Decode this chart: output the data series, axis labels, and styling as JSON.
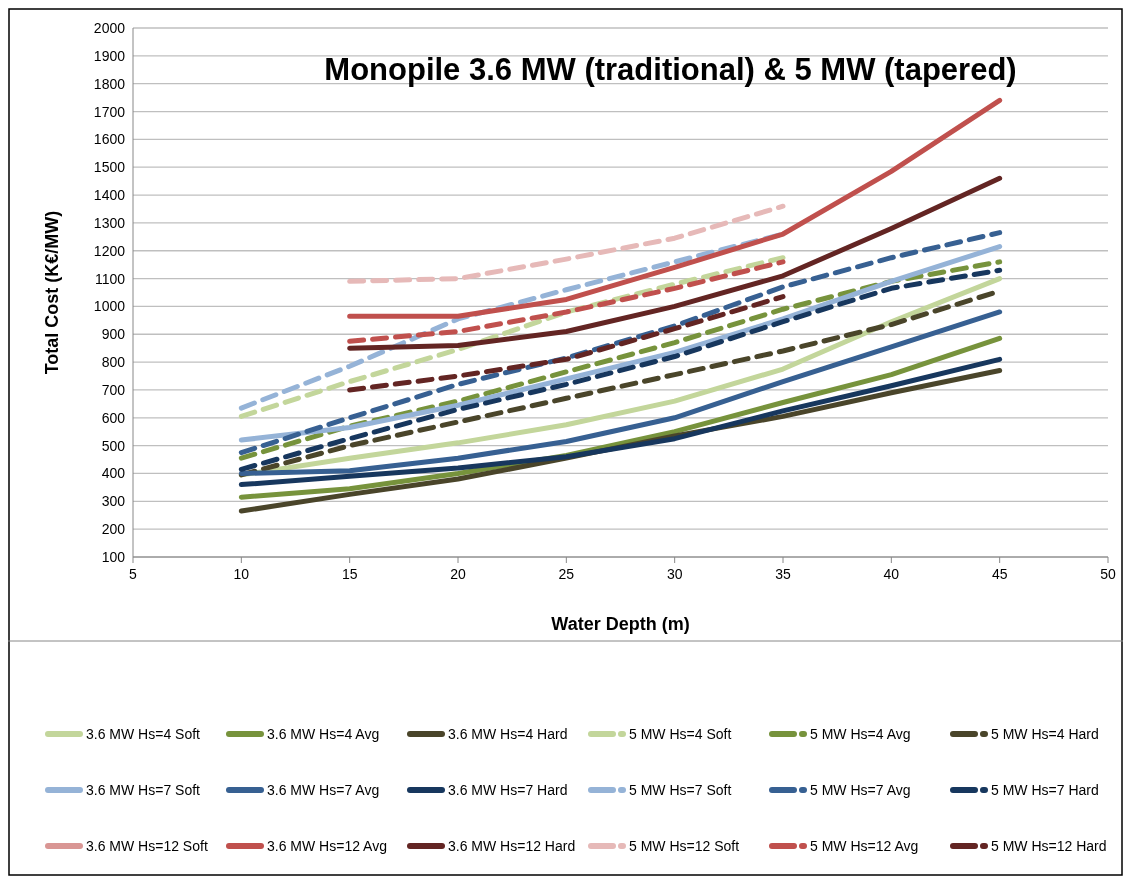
{
  "chart_data": {
    "type": "line",
    "title": "Monopile 3.6 MW (traditional) & 5 MW (tapered)",
    "xlabel": "Water Depth (m)",
    "ylabel": "Total Cost (K€/MW)",
    "xlim": [
      5,
      50
    ],
    "xticks": [
      5,
      10,
      15,
      20,
      25,
      30,
      35,
      40,
      45,
      50
    ],
    "ylim": [
      100,
      2000
    ],
    "yticks": [
      100,
      200,
      300,
      400,
      500,
      600,
      700,
      800,
      900,
      1000,
      1100,
      1200,
      1300,
      1400,
      1500,
      1600,
      1700,
      1800,
      1900,
      2000
    ],
    "grid": "y",
    "legend": "bottom",
    "marker": "none",
    "x": [
      10,
      15,
      20,
      25,
      30,
      35,
      40,
      45
    ],
    "series": [
      {
        "name": "3.6 MW Hs=4 Soft",
        "color": "#c3d69b",
        "line_style": "solid",
        "values": [
          395,
          455,
          510,
          575,
          660,
          775,
          945,
          1100
        ]
      },
      {
        "name": "3.6 MW Hs=4 Avg",
        "color": "#77933c",
        "line_style": "solid",
        "values": [
          315,
          345,
          400,
          465,
          550,
          655,
          755,
          885
        ]
      },
      {
        "name": "3.6 MW Hs=4 Hard",
        "color": "#4a452a",
        "line_style": "solid",
        "values": [
          265,
          325,
          380,
          455,
          535,
          605,
          690,
          770
        ]
      },
      {
        "name": "5 MW Hs=4 Soft",
        "color": "#c3d69b",
        "line_style": "dashed",
        "values": [
          605,
          730,
          845,
          980,
          1080,
          1175,
          null,
          null
        ]
      },
      {
        "name": "5 MW Hs=4 Avg",
        "color": "#77933c",
        "line_style": "dashed",
        "values": [
          455,
          570,
          660,
          765,
          870,
          990,
          1090,
          1160
        ]
      },
      {
        "name": "5 MW Hs=4 Hard",
        "color": "#4a452a",
        "line_style": "dashed",
        "values": [
          395,
          500,
          585,
          670,
          755,
          840,
          935,
          1055
        ]
      },
      {
        "name": "3.6 MW Hs=7 Soft",
        "color": "#95b3d7",
        "line_style": "solid",
        "values": [
          520,
          565,
          645,
          740,
          835,
          955,
          1090,
          1215
        ]
      },
      {
        "name": "3.6 MW Hs=7 Avg",
        "color": "#376092",
        "line_style": "solid",
        "values": [
          400,
          410,
          455,
          515,
          600,
          730,
          855,
          980
        ]
      },
      {
        "name": "3.6 MW Hs=7 Hard",
        "color": "#17375e",
        "line_style": "solid",
        "values": [
          360,
          390,
          420,
          460,
          525,
          625,
          715,
          810
        ]
      },
      {
        "name": "5 MW Hs=7 Soft",
        "color": "#95b3d7",
        "line_style": "dashed",
        "values": [
          635,
          785,
          955,
          1060,
          1160,
          1260,
          null,
          null
        ]
      },
      {
        "name": "5 MW Hs=7 Avg",
        "color": "#376092",
        "line_style": "dashed",
        "values": [
          475,
          600,
          720,
          815,
          930,
          1070,
          1175,
          1265
        ]
      },
      {
        "name": "5 MW Hs=7 Hard",
        "color": "#17375e",
        "line_style": "dashed",
        "values": [
          415,
          525,
          630,
          720,
          820,
          945,
          1065,
          1130
        ]
      },
      {
        "name": "3.6 MW Hs=12 Soft",
        "color": "#d99694",
        "line_style": "solid",
        "values": [
          null,
          null,
          null,
          null,
          null,
          null,
          null,
          null
        ]
      },
      {
        "name": "3.6 MW Hs=12 Avg",
        "color": "#c0504d",
        "line_style": "solid",
        "values": [
          null,
          965,
          965,
          1025,
          1140,
          1260,
          1485,
          1740
        ]
      },
      {
        "name": "3.6 MW Hs=12 Hard",
        "color": "#632523",
        "line_style": "solid",
        "values": [
          null,
          850,
          860,
          910,
          1000,
          1110,
          1280,
          1460
        ]
      },
      {
        "name": "5 MW Hs=12 Soft",
        "color": "#e6b9b8",
        "line_style": "dashed",
        "values": [
          null,
          1090,
          1100,
          1170,
          1245,
          1360,
          null,
          null
        ]
      },
      {
        "name": "5 MW Hs=12 Avg",
        "color": "#c0504d",
        "line_style": "dashed",
        "values": [
          null,
          875,
          910,
          980,
          1065,
          1160,
          null,
          null
        ]
      },
      {
        "name": "5 MW Hs=12 Hard",
        "color": "#632523",
        "line_style": "dashed",
        "values": [
          null,
          700,
          750,
          810,
          920,
          1035,
          null,
          null
        ]
      }
    ]
  }
}
